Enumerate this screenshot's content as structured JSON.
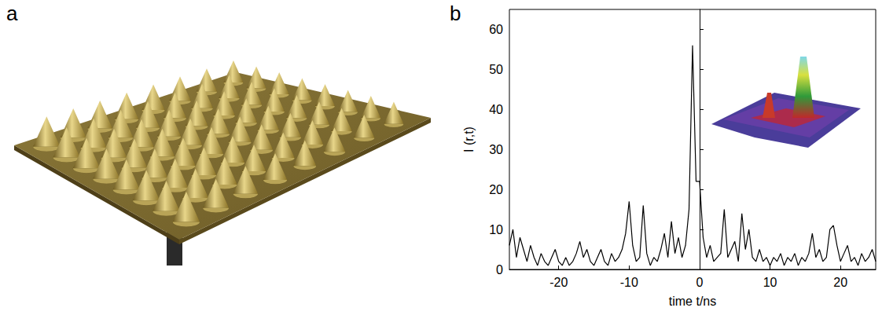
{
  "photo": {
    "panel_label": "a"
  },
  "chart_data": {
    "type": "line",
    "panel_label": "b",
    "xlabel": "time t/ns",
    "ylabel": "I (r,t)",
    "x": [
      -27,
      -26.5,
      -26,
      -25.5,
      -25,
      -24.5,
      -24,
      -23.5,
      -23,
      -22.5,
      -22,
      -21.5,
      -21,
      -20.5,
      -20,
      -19.5,
      -19,
      -18.5,
      -18,
      -17.5,
      -17,
      -16.5,
      -16,
      -15.5,
      -15,
      -14.5,
      -14,
      -13.5,
      -13,
      -12.5,
      -12,
      -11.5,
      -11,
      -10.5,
      -10,
      -9.5,
      -9,
      -8.5,
      -8,
      -7.5,
      -7,
      -6.5,
      -6,
      -5.5,
      -5,
      -4.5,
      -4,
      -3.5,
      -3,
      -2.5,
      -2,
      -1.5,
      -1,
      -0.5,
      0,
      0.5,
      1,
      1.5,
      2,
      2.5,
      3,
      3.5,
      4,
      4.5,
      5,
      5.5,
      6,
      6.5,
      7,
      7.5,
      8,
      8.5,
      9,
      9.5,
      10,
      10.5,
      11,
      11.5,
      12,
      12.5,
      13,
      13.5,
      14,
      14.5,
      15,
      15.5,
      16,
      16.5,
      17,
      17.5,
      18,
      18.5,
      19,
      19.5,
      20,
      20.5,
      21,
      21.5,
      22,
      22.5,
      23,
      23.5,
      24,
      24.5,
      25
    ],
    "values": [
      6,
      10,
      3,
      8,
      5,
      2,
      6,
      3,
      1,
      4,
      2,
      1,
      3,
      5,
      2,
      1,
      3,
      1,
      2,
      4,
      7,
      3,
      5,
      2,
      1,
      3,
      5,
      2,
      1,
      4,
      2,
      3,
      5,
      9,
      17,
      6,
      2,
      3,
      16,
      4,
      1,
      3,
      2,
      5,
      9,
      3,
      12,
      4,
      8,
      3,
      6,
      15,
      56,
      22,
      22,
      8,
      3,
      6,
      2,
      3,
      4,
      15,
      3,
      5,
      7,
      2,
      14,
      5,
      10,
      3,
      2,
      5,
      2,
      3,
      1,
      3,
      2,
      4,
      1,
      3,
      2,
      4,
      1,
      3,
      2,
      4,
      9,
      3,
      5,
      2,
      3,
      10,
      11,
      6,
      2,
      4,
      6,
      2,
      3,
      1,
      4,
      2,
      3,
      5,
      2
    ],
    "color": "#000000",
    "xlim": [
      -27,
      25
    ],
    "xticks": [
      -20,
      -10,
      0,
      10,
      20
    ],
    "ylim": [
      0,
      65
    ],
    "yticks": [
      0,
      10,
      20,
      30,
      40,
      50,
      60
    ],
    "grid": false
  }
}
